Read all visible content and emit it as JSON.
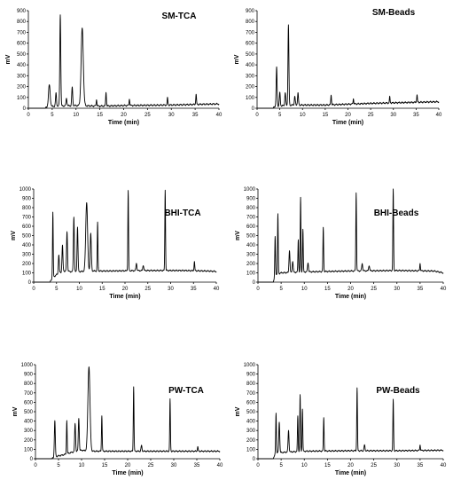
{
  "chart_data": [
    {
      "type": "line",
      "title": "SM-TCA",
      "xlabel": "Time (min)",
      "ylabel": "mV",
      "xlim": [
        0,
        40
      ],
      "ylim": [
        0,
        900
      ],
      "xticks": [
        0,
        5,
        10,
        15,
        20,
        25,
        30,
        35,
        40
      ],
      "yticks": [
        0,
        100,
        200,
        300,
        400,
        500,
        600,
        700,
        800,
        900
      ],
      "baseline": [
        [
          0,
          0
        ],
        [
          3.5,
          0
        ],
        [
          4,
          15
        ],
        [
          6,
          20
        ],
        [
          10,
          25
        ],
        [
          15,
          20
        ],
        [
          20,
          25
        ],
        [
          30,
          30
        ],
        [
          40,
          40
        ]
      ],
      "peaks": [
        {
          "x": 4.4,
          "y": 200,
          "w": 0.35
        },
        {
          "x": 5.8,
          "y": 120,
          "w": 0.2
        },
        {
          "x": 6.7,
          "y": 845,
          "w": 0.2
        },
        {
          "x": 8.0,
          "y": 70,
          "w": 0.2
        },
        {
          "x": 9.2,
          "y": 170,
          "w": 0.2
        },
        {
          "x": 11.3,
          "y": 715,
          "w": 0.45
        },
        {
          "x": 14.3,
          "y": 60,
          "w": 0.15
        },
        {
          "x": 16.3,
          "y": 130,
          "w": 0.15
        },
        {
          "x": 21.2,
          "y": 60,
          "w": 0.15
        },
        {
          "x": 29.2,
          "y": 65,
          "w": 0.15
        },
        {
          "x": 35.2,
          "y": 95,
          "w": 0.15
        }
      ]
    },
    {
      "type": "line",
      "title": "SM-Beads",
      "xlabel": "Time (min)",
      "ylabel": "mV",
      "xlim": [
        0,
        40
      ],
      "ylim": [
        0,
        900
      ],
      "xticks": [
        0,
        5,
        10,
        15,
        20,
        25,
        30,
        35,
        40
      ],
      "yticks": [
        0,
        100,
        200,
        300,
        400,
        500,
        600,
        700,
        800,
        900
      ],
      "baseline": [
        [
          0,
          0
        ],
        [
          3.5,
          0
        ],
        [
          4,
          20
        ],
        [
          8,
          30
        ],
        [
          15,
          30
        ],
        [
          25,
          45
        ],
        [
          35,
          55
        ],
        [
          40,
          60
        ]
      ],
      "peaks": [
        {
          "x": 4.3,
          "y": 355,
          "w": 0.2
        },
        {
          "x": 5.0,
          "y": 120,
          "w": 0.2
        },
        {
          "x": 6.2,
          "y": 120,
          "w": 0.2
        },
        {
          "x": 6.9,
          "y": 740,
          "w": 0.2
        },
        {
          "x": 8.3,
          "y": 80,
          "w": 0.2
        },
        {
          "x": 9.0,
          "y": 110,
          "w": 0.2
        },
        {
          "x": 16.3,
          "y": 95,
          "w": 0.15
        },
        {
          "x": 21.2,
          "y": 50,
          "w": 0.15
        },
        {
          "x": 29.2,
          "y": 55,
          "w": 0.15
        },
        {
          "x": 35.2,
          "y": 70,
          "w": 0.15
        }
      ]
    },
    {
      "type": "line",
      "title": "BHI-TCA",
      "xlabel": "Time (min)",
      "ylabel": "mV",
      "xlim": [
        0,
        40
      ],
      "ylim": [
        0,
        1000
      ],
      "xticks": [
        0,
        5,
        10,
        15,
        20,
        25,
        30,
        35,
        40
      ],
      "yticks": [
        0,
        100,
        200,
        300,
        400,
        500,
        600,
        700,
        800,
        900,
        1000
      ],
      "baseline": [
        [
          0,
          0
        ],
        [
          3.6,
          0
        ],
        [
          4.0,
          40
        ],
        [
          5,
          80
        ],
        [
          6.5,
          120
        ],
        [
          9,
          110
        ],
        [
          12,
          120
        ],
        [
          16,
          120
        ],
        [
          25,
          125
        ],
        [
          33,
          125
        ],
        [
          38,
          120
        ],
        [
          40,
          115
        ]
      ],
      "peaks": [
        {
          "x": 4.2,
          "y": 700,
          "w": 0.15
        },
        {
          "x": 5.5,
          "y": 200,
          "w": 0.2
        },
        {
          "x": 6.3,
          "y": 280,
          "w": 0.2
        },
        {
          "x": 7.3,
          "y": 430,
          "w": 0.2
        },
        {
          "x": 8.8,
          "y": 590,
          "w": 0.2
        },
        {
          "x": 9.6,
          "y": 480,
          "w": 0.2
        },
        {
          "x": 11.6,
          "y": 740,
          "w": 0.4
        },
        {
          "x": 12.5,
          "y": 400,
          "w": 0.25
        },
        {
          "x": 14.0,
          "y": 520,
          "w": 0.15
        },
        {
          "x": 20.7,
          "y": 860,
          "w": 0.15
        },
        {
          "x": 22.5,
          "y": 80,
          "w": 0.2
        },
        {
          "x": 24.0,
          "y": 60,
          "w": 0.2
        },
        {
          "x": 28.8,
          "y": 870,
          "w": 0.15
        },
        {
          "x": 35.2,
          "y": 100,
          "w": 0.15
        }
      ]
    },
    {
      "type": "line",
      "title": "BHI-Beads",
      "xlabel": "Time (min)",
      "ylabel": "mV",
      "xlim": [
        0,
        40
      ],
      "ylim": [
        0,
        1000
      ],
      "xticks": [
        0,
        5,
        10,
        15,
        20,
        25,
        30,
        35,
        40
      ],
      "yticks": [
        0,
        100,
        200,
        300,
        400,
        500,
        600,
        700,
        800,
        900,
        1000
      ],
      "baseline": [
        [
          0,
          0
        ],
        [
          3.3,
          0
        ],
        [
          3.8,
          80
        ],
        [
          5,
          100
        ],
        [
          10,
          110
        ],
        [
          20,
          120
        ],
        [
          30,
          125
        ],
        [
          38,
          120
        ],
        [
          40,
          100
        ]
      ],
      "peaks": [
        {
          "x": 3.7,
          "y": 420,
          "w": 0.15
        },
        {
          "x": 4.3,
          "y": 640,
          "w": 0.15
        },
        {
          "x": 6.8,
          "y": 240,
          "w": 0.2
        },
        {
          "x": 7.5,
          "y": 120,
          "w": 0.2
        },
        {
          "x": 8.7,
          "y": 350,
          "w": 0.15
        },
        {
          "x": 9.2,
          "y": 800,
          "w": 0.15
        },
        {
          "x": 9.7,
          "y": 460,
          "w": 0.15
        },
        {
          "x": 10.8,
          "y": 100,
          "w": 0.2
        },
        {
          "x": 14.1,
          "y": 470,
          "w": 0.15
        },
        {
          "x": 21.2,
          "y": 840,
          "w": 0.15
        },
        {
          "x": 22.5,
          "y": 80,
          "w": 0.2
        },
        {
          "x": 24.0,
          "y": 60,
          "w": 0.2
        },
        {
          "x": 29.2,
          "y": 870,
          "w": 0.15
        },
        {
          "x": 35.0,
          "y": 80,
          "w": 0.15
        }
      ]
    },
    {
      "type": "line",
      "title": "PW-TCA",
      "xlabel": "Time (min)",
      "ylabel": "mV",
      "xlim": [
        0,
        40
      ],
      "ylim": [
        0,
        1000
      ],
      "xticks": [
        0,
        5,
        10,
        15,
        20,
        25,
        30,
        35,
        40
      ],
      "yticks": [
        0,
        100,
        200,
        300,
        400,
        500,
        600,
        700,
        800,
        900,
        1000
      ],
      "baseline": [
        [
          0,
          0
        ],
        [
          3.6,
          0
        ],
        [
          4.0,
          20
        ],
        [
          6,
          40
        ],
        [
          8,
          70
        ],
        [
          10,
          90
        ],
        [
          12,
          80
        ],
        [
          15,
          80
        ],
        [
          25,
          80
        ],
        [
          40,
          80
        ]
      ],
      "peaks": [
        {
          "x": 4.2,
          "y": 380,
          "w": 0.2
        },
        {
          "x": 6.8,
          "y": 360,
          "w": 0.15
        },
        {
          "x": 8.6,
          "y": 300,
          "w": 0.2
        },
        {
          "x": 9.4,
          "y": 350,
          "w": 0.2
        },
        {
          "x": 11.6,
          "y": 900,
          "w": 0.45
        },
        {
          "x": 14.4,
          "y": 380,
          "w": 0.15
        },
        {
          "x": 21.3,
          "y": 690,
          "w": 0.15
        },
        {
          "x": 23.0,
          "y": 60,
          "w": 0.2
        },
        {
          "x": 29.2,
          "y": 550,
          "w": 0.15
        },
        {
          "x": 35.2,
          "y": 50,
          "w": 0.15
        }
      ]
    },
    {
      "type": "line",
      "title": "PW-Beads",
      "xlabel": "Time (min)",
      "ylabel": "mV",
      "xlim": [
        0,
        40
      ],
      "ylim": [
        0,
        1000
      ],
      "xticks": [
        0,
        5,
        10,
        15,
        20,
        25,
        30,
        35,
        40
      ],
      "yticks": [
        0,
        100,
        200,
        300,
        400,
        500,
        600,
        700,
        800,
        900,
        1000
      ],
      "baseline": [
        [
          0,
          0
        ],
        [
          3.3,
          0
        ],
        [
          3.8,
          60
        ],
        [
          6,
          70
        ],
        [
          10,
          80
        ],
        [
          20,
          85
        ],
        [
          30,
          85
        ],
        [
          40,
          90
        ]
      ],
      "peaks": [
        {
          "x": 3.9,
          "y": 430,
          "w": 0.15
        },
        {
          "x": 4.6,
          "y": 330,
          "w": 0.2
        },
        {
          "x": 6.6,
          "y": 230,
          "w": 0.2
        },
        {
          "x": 8.6,
          "y": 380,
          "w": 0.15
        },
        {
          "x": 9.1,
          "y": 600,
          "w": 0.15
        },
        {
          "x": 9.6,
          "y": 450,
          "w": 0.15
        },
        {
          "x": 14.2,
          "y": 360,
          "w": 0.15
        },
        {
          "x": 21.4,
          "y": 670,
          "w": 0.15
        },
        {
          "x": 23.0,
          "y": 60,
          "w": 0.2
        },
        {
          "x": 29.2,
          "y": 540,
          "w": 0.15
        },
        {
          "x": 35.0,
          "y": 60,
          "w": 0.15
        }
      ]
    }
  ]
}
